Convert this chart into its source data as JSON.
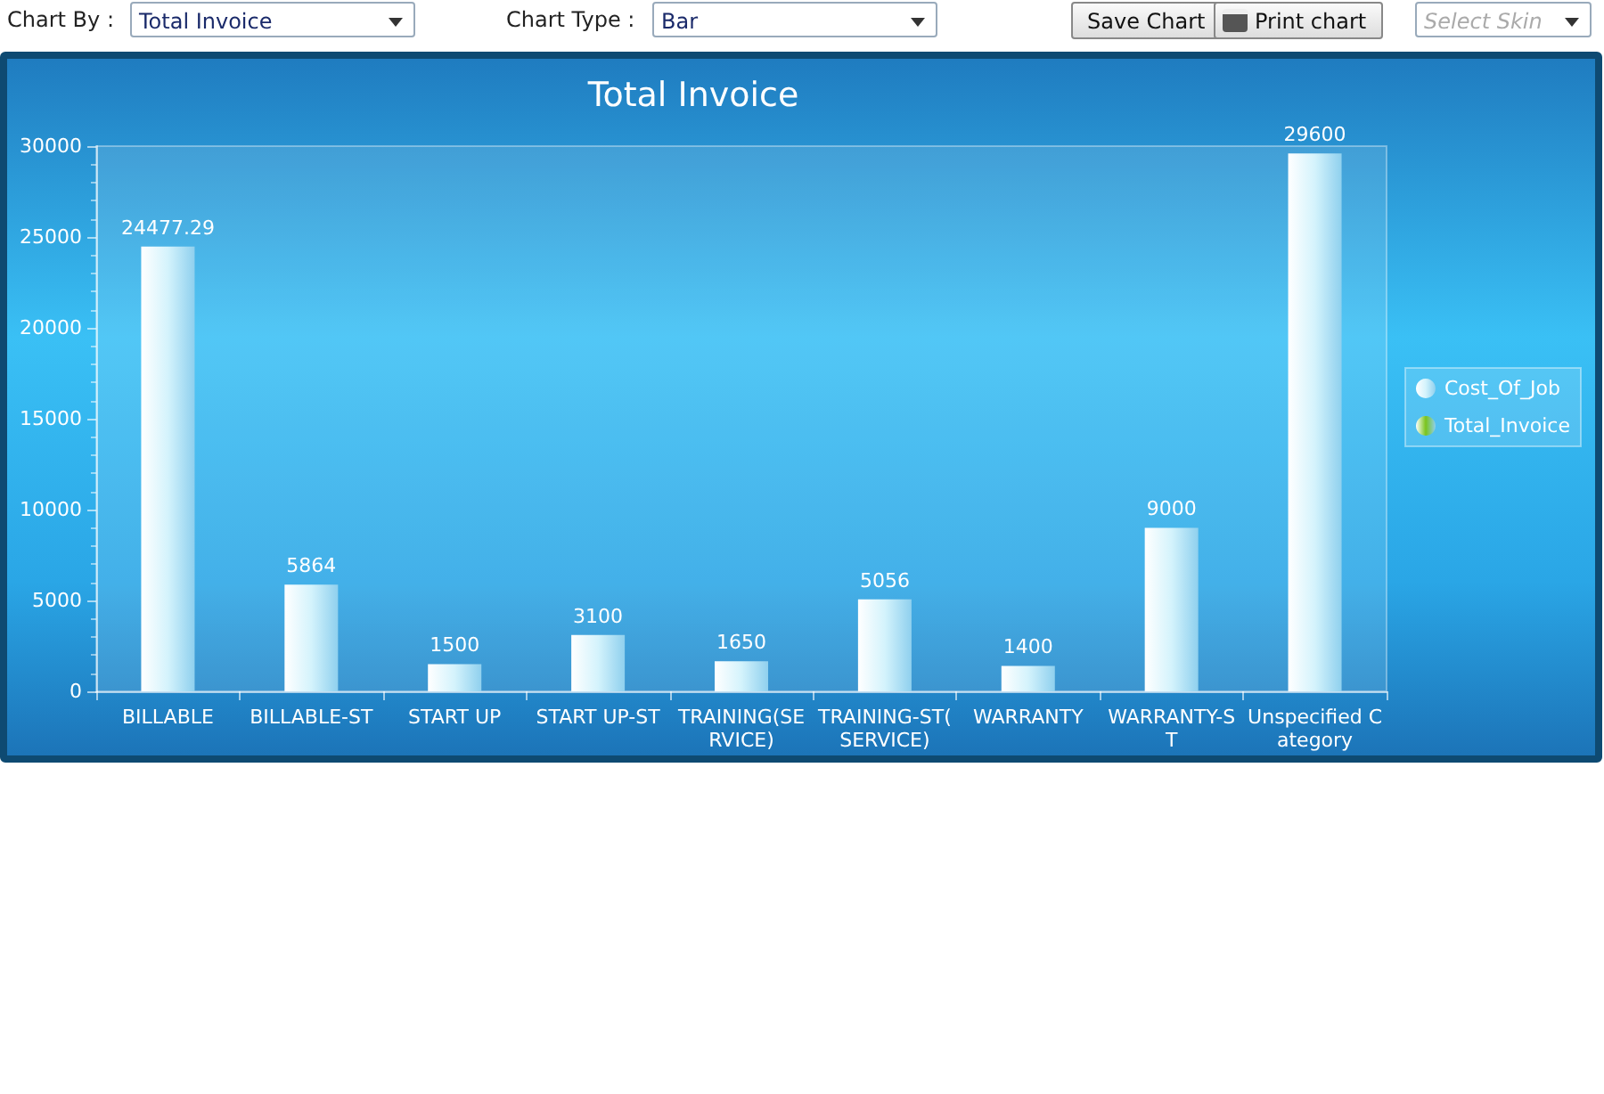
{
  "chart_data": {
    "type": "bar",
    "title": "Total Invoice",
    "categories": [
      "BILLABLE",
      "BILLABLE-ST",
      "START UP",
      "START UP-ST",
      "TRAINING(SERVICE)",
      "TRAINING-ST(SERVICE)",
      "WARRANTY",
      "WARRANTY-ST",
      "Unspecified Category"
    ],
    "series": [
      {
        "name": "Cost_Of_Job",
        "color": "#d4f3fc",
        "values": [
          24477.29,
          5864,
          1500,
          3100,
          1650,
          5056,
          1400,
          9000,
          29600
        ]
      },
      {
        "name": "Total_Invoice",
        "color": "#7ac41c",
        "values": [
          null,
          null,
          null,
          null,
          null,
          null,
          null,
          null,
          null
        ]
      }
    ],
    "ylim": [
      0,
      30000
    ],
    "yticks": [
      0,
      5000,
      10000,
      15000,
      20000,
      25000,
      30000
    ],
    "data_labels": true,
    "grid": false,
    "legend": "right",
    "annotations": [
      "Chart By :",
      "Total Invoice",
      "Chart Type :",
      "Bar",
      "Save Chart",
      "Print chart",
      "Select Skin"
    ]
  }
}
